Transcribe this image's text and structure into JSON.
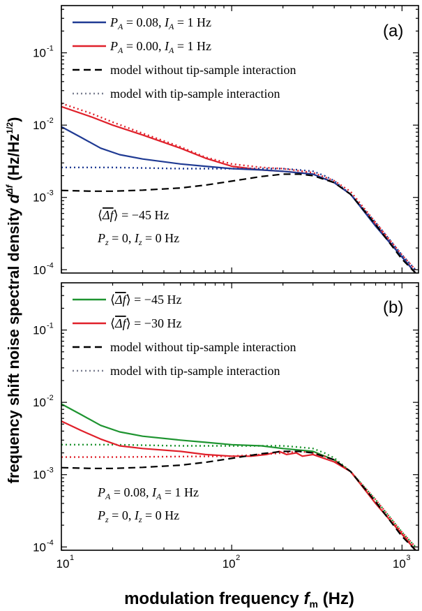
{
  "figure": {
    "ylabel_main": "frequency shift noise spectral density ",
    "ylabel_symbol": "d",
    "ylabel_sup": "Δf",
    "ylabel_units": " (Hz/Hz",
    "ylabel_units_sup": "1/2",
    "ylabel_units_close": ")",
    "xlabel_main": "modulation frequency ",
    "xlabel_symbol": "f",
    "xlabel_sub": "m",
    "xlabel_units": " (Hz)"
  },
  "colors": {
    "blue": "#1f3a93",
    "red": "#e0202a",
    "green": "#1e9430",
    "black": "#000000",
    "gray": "#7a7f90"
  },
  "chart_data": [
    {
      "type": "line",
      "panel": "(a)",
      "xscale": "log",
      "yscale": "log",
      "xlim": [
        10,
        1250
      ],
      "ylim": [
        9e-05,
        0.45
      ],
      "x_ticks": [
        {
          "base": "10",
          "exp": "1"
        },
        {
          "base": "10",
          "exp": "2"
        },
        {
          "base": "10",
          "exp": "3"
        }
      ],
      "y_ticks": [
        {
          "base": "10",
          "exp": "-1"
        },
        {
          "base": "10",
          "exp": "-2"
        },
        {
          "base": "10",
          "exp": "-3"
        },
        {
          "base": "10",
          "exp": "-4"
        }
      ],
      "legend": [
        {
          "label": "P_A = 0.08,  I_A = 1 Hz",
          "label_parts": {
            "sym1": "P",
            "sub1": "A",
            "mid": " = 0.08,  ",
            "sym2": "I",
            "sub2": "A",
            "tail": " = 1 Hz"
          },
          "color": "#1f3a93",
          "style": "solid"
        },
        {
          "label": "P_A = 0.00,  I_A = 1 Hz",
          "label_parts": {
            "sym1": "P",
            "sub1": "A",
            "mid": " = 0.00,  ",
            "sym2": "I",
            "sub2": "A",
            "tail": " = 1 Hz"
          },
          "color": "#e0202a",
          "style": "solid"
        },
        {
          "label": "model without tip-sample interaction",
          "color": "#000000",
          "style": "dashed"
        },
        {
          "label": "model with tip-sample interaction",
          "color": "#7a7f90",
          "style": "dotted"
        }
      ],
      "annotations": [
        {
          "text": "⟨Δf⟩ = −45 Hz",
          "parts": {
            "open": "⟨",
            "sym": "Δf",
            "close": "⟩",
            "tail": " = −45 Hz"
          }
        },
        {
          "text": "P_z = 0,  I_z = 0 Hz",
          "parts": {
            "sym1": "P",
            "sub1": "z",
            "mid": " = 0,  ",
            "sym2": "I",
            "sub2": "z",
            "tail": " = 0 Hz"
          }
        }
      ],
      "series": [
        {
          "name": "measured P_A=0.00",
          "color": "#e0202a",
          "style": "solid",
          "width": 2.2,
          "x": [
            10,
            15,
            20,
            30,
            50,
            70,
            100,
            150,
            200,
            250,
            300,
            400,
            500,
            700,
            1000,
            1200
          ],
          "y": [
            0.018,
            0.013,
            0.01,
            0.0073,
            0.0048,
            0.0035,
            0.0027,
            0.0024,
            0.0023,
            0.0022,
            0.0021,
            0.0016,
            0.0011,
            0.00042,
            0.00015,
            9e-05
          ]
        },
        {
          "name": "model with interaction P_A=0.00",
          "color": "#e0202a",
          "style": "dotted",
          "width": 2.4,
          "x": [
            10,
            15,
            20,
            30,
            50,
            70,
            100,
            150,
            200,
            300,
            400,
            500,
            700,
            1000,
            1200
          ],
          "y": [
            0.02,
            0.0145,
            0.011,
            0.0077,
            0.005,
            0.0036,
            0.0029,
            0.0026,
            0.0025,
            0.0022,
            0.0017,
            0.0012,
            0.00045,
            0.00016,
            0.0001
          ]
        },
        {
          "name": "measured P_A=0.08",
          "color": "#1f3a93",
          "style": "solid",
          "width": 2.2,
          "x": [
            10,
            13,
            17,
            22,
            30,
            50,
            70,
            100,
            150,
            200,
            300,
            400,
            500,
            700,
            1000,
            1200
          ],
          "y": [
            0.0095,
            0.0068,
            0.0048,
            0.0039,
            0.0034,
            0.0029,
            0.0027,
            0.0025,
            0.0024,
            0.0023,
            0.0021,
            0.0016,
            0.0011,
            0.0004,
            0.00015,
            9e-05
          ]
        },
        {
          "name": "model with interaction P_A=0.08",
          "color": "#1f3a93",
          "style": "dotted",
          "width": 2.4,
          "x": [
            10,
            20,
            50,
            100,
            150,
            200,
            250,
            300,
            350,
            400,
            500,
            700,
            1000,
            1200
          ],
          "y": [
            0.0026,
            0.0026,
            0.0025,
            0.0025,
            0.0025,
            0.0025,
            0.0024,
            0.0023,
            0.002,
            0.0017,
            0.0011,
            0.00045,
            0.00016,
            0.0001
          ]
        },
        {
          "name": "model without interaction",
          "color": "#000000",
          "style": "dashed",
          "width": 2.2,
          "x": [
            10,
            15,
            20,
            30,
            50,
            70,
            100,
            150,
            200,
            250,
            300,
            400,
            500,
            700,
            1000,
            1200
          ],
          "y": [
            0.00125,
            0.00122,
            0.00122,
            0.00126,
            0.00135,
            0.00148,
            0.00168,
            0.00195,
            0.0021,
            0.0021,
            0.002,
            0.0016,
            0.0011,
            0.00042,
            0.00014,
            9e-05
          ]
        }
      ]
    },
    {
      "type": "line",
      "panel": "(b)",
      "xscale": "log",
      "yscale": "log",
      "xlim": [
        10,
        1250
      ],
      "ylim": [
        9e-05,
        0.45
      ],
      "x_ticks": [
        {
          "base": "10",
          "exp": "1"
        },
        {
          "base": "10",
          "exp": "2"
        },
        {
          "base": "10",
          "exp": "3"
        }
      ],
      "y_ticks": [
        {
          "base": "10",
          "exp": "-1"
        },
        {
          "base": "10",
          "exp": "-2"
        },
        {
          "base": "10",
          "exp": "-3"
        },
        {
          "base": "10",
          "exp": "-4"
        }
      ],
      "legend": [
        {
          "label": "⟨Δf⟩ = −45 Hz",
          "bracket_parts": {
            "open": "⟨",
            "sym": "Δf",
            "close": "⟩",
            "tail": " = −45 Hz"
          },
          "color": "#1e9430",
          "style": "solid"
        },
        {
          "label": "⟨Δf⟩ = −30 Hz",
          "bracket_parts": {
            "open": "⟨",
            "sym": "Δf",
            "close": "⟩",
            "tail": " = −30 Hz"
          },
          "color": "#e0202a",
          "style": "solid"
        },
        {
          "label": "model without tip-sample interaction",
          "color": "#000000",
          "style": "dashed"
        },
        {
          "label": "model with tip-sample interaction",
          "color": "#7a7f90",
          "style": "dotted"
        }
      ],
      "annotations": [
        {
          "text": "P_A = 0.08,  I_A = 1 Hz",
          "parts": {
            "sym1": "P",
            "sub1": "A",
            "mid": " = 0.08,  ",
            "sym2": "I",
            "sub2": "A",
            "tail": " = 1 Hz"
          }
        },
        {
          "text": "P_z = 0,  I_z = 0 Hz",
          "parts": {
            "sym1": "P",
            "sub1": "z",
            "mid": " = 0,  ",
            "sym2": "I",
            "sub2": "z",
            "tail": " = 0 Hz"
          }
        }
      ],
      "series": [
        {
          "name": "measured -45 Hz",
          "color": "#1e9430",
          "style": "solid",
          "width": 2.2,
          "x": [
            10,
            13,
            17,
            22,
            30,
            50,
            70,
            100,
            150,
            200,
            300,
            400,
            500,
            700,
            1000,
            1200
          ],
          "y": [
            0.0095,
            0.0068,
            0.0048,
            0.0039,
            0.0034,
            0.003,
            0.0028,
            0.0026,
            0.0025,
            0.0023,
            0.0021,
            0.0016,
            0.0011,
            0.0004,
            0.00015,
            9e-05
          ]
        },
        {
          "name": "model with interaction -45 Hz",
          "color": "#1e9430",
          "style": "dotted",
          "width": 2.4,
          "x": [
            10,
            20,
            50,
            100,
            150,
            200,
            250,
            300,
            350,
            400,
            500,
            700,
            1000,
            1200
          ],
          "y": [
            0.0026,
            0.0026,
            0.0025,
            0.0025,
            0.0025,
            0.0025,
            0.0024,
            0.0023,
            0.002,
            0.0017,
            0.0011,
            0.00045,
            0.00016,
            0.0001
          ]
        },
        {
          "name": "measured -30 Hz",
          "color": "#e0202a",
          "style": "solid",
          "width": 2.2,
          "x": [
            10,
            13,
            17,
            22,
            30,
            50,
            70,
            100,
            130,
            160,
            190,
            210,
            240,
            260,
            300,
            400,
            500,
            700,
            1000,
            1200
          ],
          "y": [
            0.0055,
            0.0041,
            0.0031,
            0.0025,
            0.0023,
            0.0021,
            0.0019,
            0.0018,
            0.0018,
            0.0019,
            0.0021,
            0.0019,
            0.002,
            0.0018,
            0.0019,
            0.0015,
            0.0011,
            0.0004,
            0.00015,
            9e-05
          ]
        },
        {
          "name": "model with interaction -30 Hz",
          "color": "#e0202a",
          "style": "dotted",
          "width": 2.4,
          "x": [
            10,
            20,
            50,
            100,
            150,
            200,
            250,
            300,
            350,
            400,
            500,
            700,
            1000,
            1200
          ],
          "y": [
            0.00175,
            0.00175,
            0.00178,
            0.0018,
            0.0019,
            0.002,
            0.0021,
            0.002,
            0.0018,
            0.0016,
            0.0011,
            0.00045,
            0.00016,
            0.0001
          ]
        },
        {
          "name": "model without interaction",
          "color": "#000000",
          "style": "dashed",
          "width": 2.2,
          "x": [
            10,
            15,
            20,
            30,
            50,
            70,
            100,
            150,
            200,
            250,
            300,
            400,
            500,
            700,
            1000,
            1200
          ],
          "y": [
            0.00125,
            0.00122,
            0.00122,
            0.00126,
            0.00135,
            0.00148,
            0.00168,
            0.00195,
            0.0021,
            0.0021,
            0.002,
            0.0016,
            0.0011,
            0.00042,
            0.00014,
            9e-05
          ]
        }
      ]
    }
  ]
}
